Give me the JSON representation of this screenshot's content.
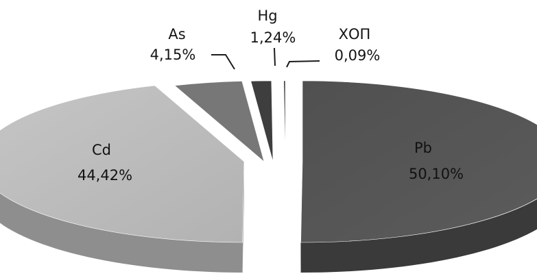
{
  "chart_data": {
    "type": "pie",
    "style": "3d-exploded",
    "title": "",
    "legend": "none",
    "slices": [
      {
        "name": "Pb",
        "value": 50.1,
        "label": "50,10%",
        "color": "#565656",
        "label_position": "inside"
      },
      {
        "name": "Cd",
        "value": 44.42,
        "label": "44,42%",
        "color": "#bcbcbc",
        "label_position": "inside"
      },
      {
        "name": "As",
        "value": 4.15,
        "label": "4,15%",
        "color": "#777777",
        "label_position": "outside"
      },
      {
        "name": "Hg",
        "value": 1.24,
        "label": "1,24%",
        "color": "#3e3e3e",
        "label_position": "outside"
      },
      {
        "name": "ХОП",
        "value": 0.09,
        "label": "0,09%",
        "color": "#2c2c2c",
        "label_position": "outside"
      }
    ]
  }
}
